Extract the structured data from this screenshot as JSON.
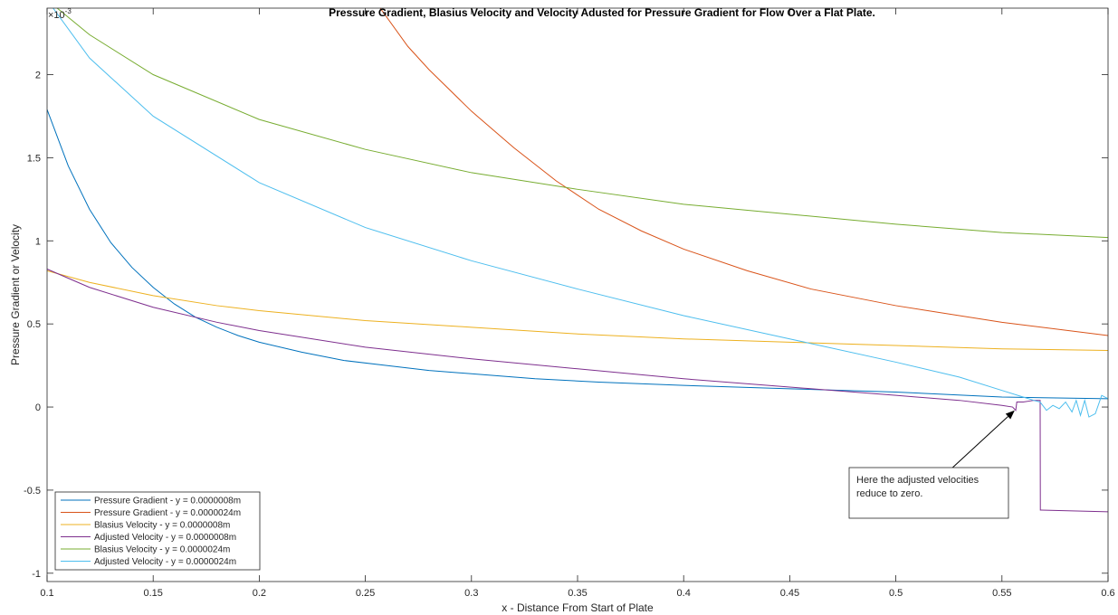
{
  "chart_data": {
    "type": "line",
    "title": "Pressure Gradient, Blasius Velocity and Velocity Adusted for Pressure Gradient for Flow Over a Flat Plate.",
    "xlabel": "x - Distance From Start of Plate",
    "ylabel": "Pressure Gradient or Velocity",
    "exponent_label": "×10^{-3}",
    "xlim": [
      0.1,
      0.6
    ],
    "ylim": [
      -1.05,
      2.4
    ],
    "xticks": [
      "0.1",
      "0.15",
      "0.2",
      "0.25",
      "0.3",
      "0.35",
      "0.4",
      "0.45",
      "0.5",
      "0.55",
      "0.6"
    ],
    "yticks": [
      "-1",
      "-0.5",
      "0",
      "0.5",
      "1",
      "1.5",
      "2"
    ],
    "legend_position": "bottom-left",
    "series": [
      {
        "name": "Pressure Gradient - y = 0.0000008m",
        "color": "#0072BD",
        "x": [
          0.1,
          0.11,
          0.12,
          0.13,
          0.14,
          0.15,
          0.16,
          0.17,
          0.18,
          0.19,
          0.2,
          0.22,
          0.24,
          0.26,
          0.28,
          0.3,
          0.33,
          0.36,
          0.4,
          0.45,
          0.5,
          0.55,
          0.6
        ],
        "y": [
          1.79,
          1.45,
          1.19,
          0.99,
          0.84,
          0.72,
          0.62,
          0.54,
          0.48,
          0.43,
          0.39,
          0.33,
          0.28,
          0.25,
          0.22,
          0.2,
          0.17,
          0.15,
          0.13,
          0.11,
          0.09,
          0.06,
          0.05
        ]
      },
      {
        "name": "Pressure Gradient - y = 0.0000024m",
        "color": "#D95319",
        "x": [
          0.257,
          0.27,
          0.28,
          0.3,
          0.32,
          0.34,
          0.36,
          0.38,
          0.4,
          0.43,
          0.46,
          0.5,
          0.55,
          0.6
        ],
        "y": [
          2.4,
          2.17,
          2.03,
          1.78,
          1.56,
          1.36,
          1.19,
          1.06,
          0.95,
          0.82,
          0.71,
          0.61,
          0.51,
          0.43
        ]
      },
      {
        "name": "Blasius Velocity - y = 0.0000008m",
        "color": "#EDB120",
        "x": [
          0.1,
          0.12,
          0.15,
          0.18,
          0.2,
          0.25,
          0.3,
          0.35,
          0.4,
          0.45,
          0.5,
          0.55,
          0.6
        ],
        "y": [
          0.82,
          0.75,
          0.67,
          0.61,
          0.58,
          0.52,
          0.48,
          0.44,
          0.41,
          0.39,
          0.37,
          0.35,
          0.34
        ]
      },
      {
        "name": "Adjusted Velocity - y = 0.0000008m",
        "color": "#7E2F8E",
        "x": [
          0.1,
          0.12,
          0.15,
          0.18,
          0.2,
          0.25,
          0.3,
          0.35,
          0.4,
          0.45,
          0.5,
          0.53,
          0.55,
          0.555,
          0.5565,
          0.557,
          0.56,
          0.565,
          0.568,
          0.5681,
          0.5685,
          0.6
        ],
        "y": [
          0.83,
          0.72,
          0.6,
          0.51,
          0.46,
          0.36,
          0.29,
          0.23,
          0.17,
          0.12,
          0.07,
          0.04,
          0.01,
          0.0,
          -0.02,
          0.03,
          0.03,
          0.04,
          0.04,
          -0.62,
          -0.62,
          -0.63
        ]
      },
      {
        "name": "Blasius Velocity - y = 0.0000024m",
        "color": "#77AC30",
        "x": [
          0.1,
          0.12,
          0.15,
          0.2,
          0.25,
          0.3,
          0.35,
          0.4,
          0.45,
          0.5,
          0.55,
          0.6
        ],
        "y": [
          2.45,
          2.24,
          2.0,
          1.73,
          1.55,
          1.41,
          1.31,
          1.22,
          1.16,
          1.1,
          1.05,
          1.02
        ]
      },
      {
        "name": "Adjusted Velocity - y = 0.0000024m",
        "color": "#4DBEEE",
        "x": [
          0.1,
          0.12,
          0.15,
          0.2,
          0.25,
          0.3,
          0.35,
          0.4,
          0.45,
          0.5,
          0.53,
          0.55,
          0.56,
          0.565,
          0.568,
          0.571,
          0.574,
          0.577,
          0.58,
          0.583,
          0.585,
          0.587,
          0.589,
          0.591,
          0.594,
          0.597,
          0.6
        ],
        "y": [
          2.45,
          2.1,
          1.75,
          1.35,
          1.08,
          0.88,
          0.71,
          0.55,
          0.41,
          0.27,
          0.18,
          0.1,
          0.06,
          0.04,
          0.03,
          -0.02,
          0.01,
          -0.01,
          0.03,
          -0.03,
          0.04,
          -0.05,
          0.04,
          -0.06,
          -0.04,
          0.07,
          0.05
        ]
      }
    ],
    "annotation": {
      "text_line1": "Here the adjusted velocities",
      "text_line2": "reduce to zero.",
      "arrow_from": [
        0.522,
        -0.42
      ],
      "arrow_to": [
        0.556,
        -0.02
      ]
    }
  }
}
